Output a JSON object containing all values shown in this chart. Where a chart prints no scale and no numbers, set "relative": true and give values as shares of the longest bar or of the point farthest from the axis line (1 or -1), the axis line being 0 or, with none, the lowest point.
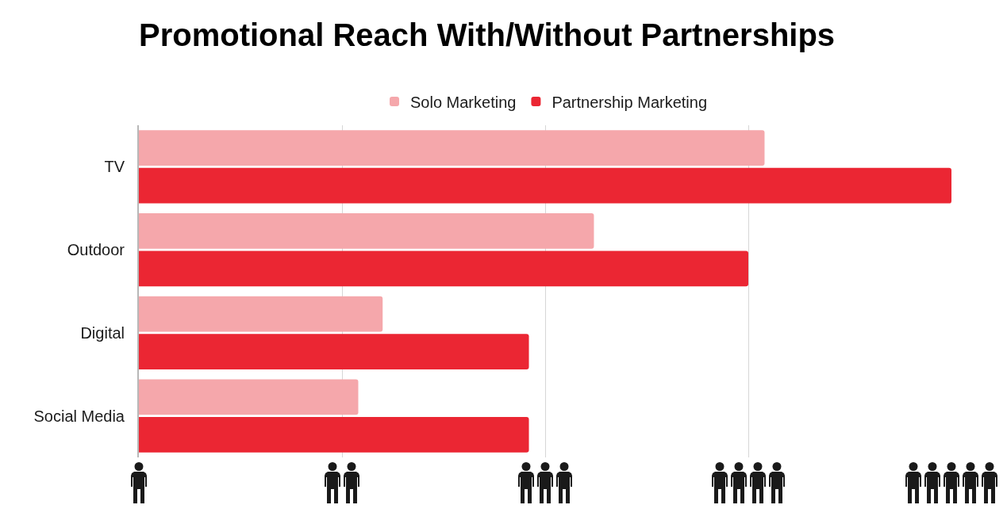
{
  "chart_data": {
    "type": "bar",
    "title": "Promotional Reach With/Without Partnerships",
    "orientation": "horizontal",
    "relative": true,
    "categories": [
      "TV",
      "Outdoor",
      "Digital",
      "Social Media"
    ],
    "series": [
      {
        "name": "Solo Marketing",
        "color": "#f5a7ab",
        "values": [
          0.77,
          0.56,
          0.3,
          0.27
        ]
      },
      {
        "name": "Partnership Marketing",
        "color": "#eb2633",
        "values": [
          1,
          0.75,
          0.48,
          0.48
        ]
      }
    ],
    "grid": "x",
    "legend": "top"
  }
}
